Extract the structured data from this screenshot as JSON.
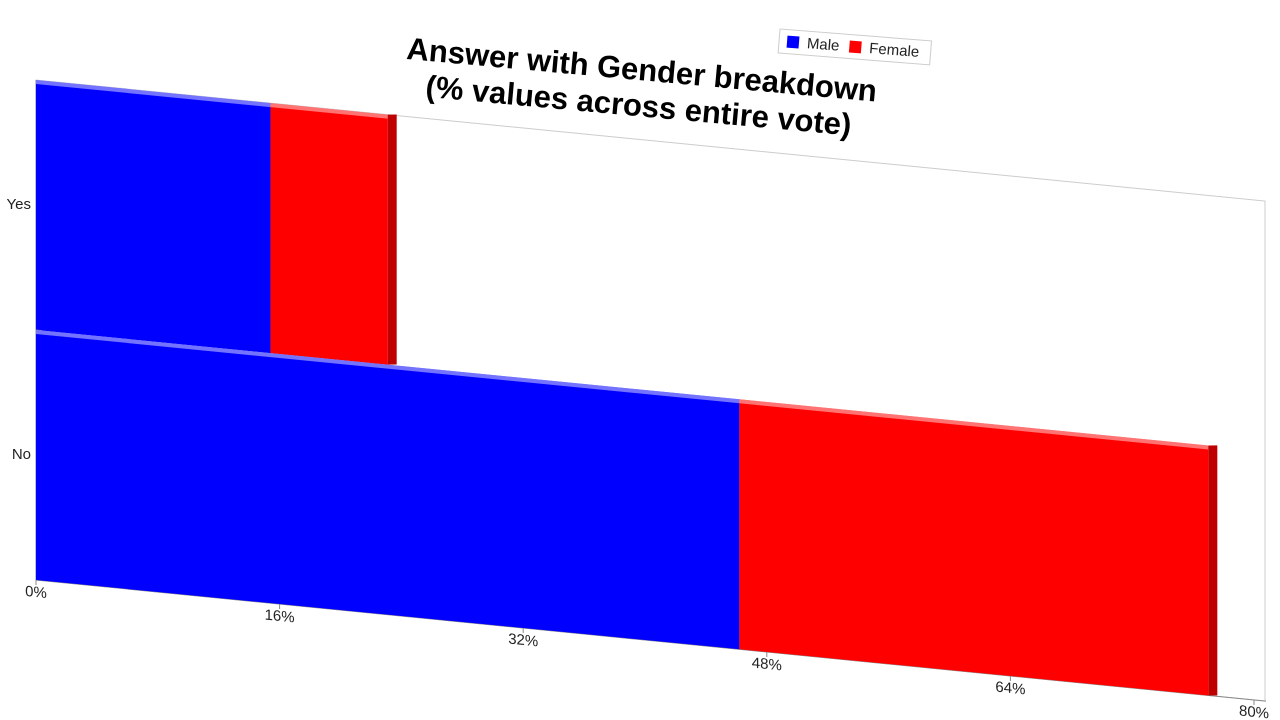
{
  "chart_data": {
    "type": "bar",
    "orientation": "horizontal",
    "stacked": true,
    "title": "Answer with Gender breakdown",
    "subtitle": "(% values across entire vote)",
    "categories": [
      "Yes",
      "No"
    ],
    "series": [
      {
        "name": "Male",
        "color": "#0000ff",
        "values": [
          15.4,
          46.2
        ]
      },
      {
        "name": "Female",
        "color": "#ff0000",
        "values": [
          7.7,
          30.8
        ]
      }
    ],
    "xlim": [
      0,
      80
    ],
    "xticks": [
      {
        "value": 0,
        "label": "0%"
      },
      {
        "value": 16,
        "label": "16%"
      },
      {
        "value": 32,
        "label": "32%"
      },
      {
        "value": 48,
        "label": "48%"
      },
      {
        "value": 64,
        "label": "64%"
      },
      {
        "value": 80,
        "label": "80%"
      }
    ]
  }
}
